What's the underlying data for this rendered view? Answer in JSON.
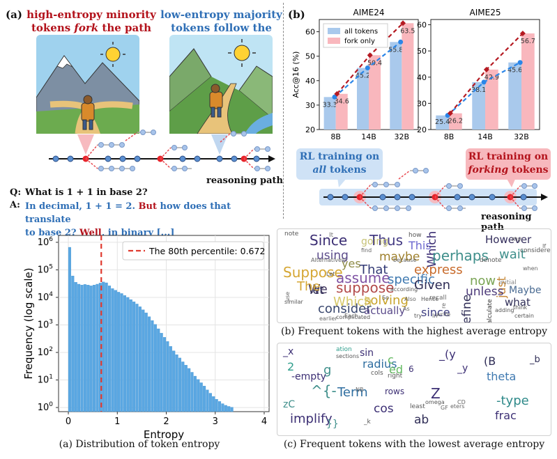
{
  "panel_a_top": {
    "label": "(a)",
    "left_caption_l1": "high-entropy minority",
    "left_caption_l2_pre": "tokens ",
    "left_caption_l2_em": "fork",
    "left_caption_l2_post": " the path",
    "right_caption_l1": "low-entropy majority",
    "right_caption_l2": "tokens follow the path",
    "path_label": "reasoning path",
    "q_label": "Q:",
    "q_text": "What is 1 + 1 in base 2?",
    "a_label": "A:",
    "a_seg1": "In decimal, 1 + 1 = 2. ",
    "a_seg2": "But",
    "a_seg3": " how does that translate",
    "a_seg4": "to base 2? ",
    "a_seg5": "Well",
    "a_seg6": ", in binary [...]"
  },
  "panel_b_top": {
    "label": "(b)",
    "rl_all_l1": "RL training on",
    "rl_all_em": "all",
    "rl_all_post": " tokens",
    "rl_fork_l1": "RL training on",
    "rl_fork_em": "forking",
    "rl_fork_post": " tokens",
    "path_label": "reasoning path"
  },
  "chart_data": [
    {
      "type": "bar",
      "title": "AIME24",
      "ylabel": "Acc@16 (%)",
      "categories": [
        "8B",
        "14B",
        "32B"
      ],
      "ylim": [
        20,
        65
      ],
      "yticks": [
        "20",
        "30",
        "40",
        "50",
        "60"
      ],
      "legend": [
        "all tokens",
        "fork only"
      ],
      "series": [
        {
          "name": "all tokens",
          "values": [
            33.3,
            45.2,
            55.8
          ],
          "labels": [
            "33.3",
            "45.2",
            "55.8"
          ]
        },
        {
          "name": "fork only",
          "values": [
            34.6,
            50.4,
            63.5
          ],
          "labels": [
            "34.6",
            "50.4",
            "63.5"
          ]
        }
      ]
    },
    {
      "type": "bar",
      "title": "AIME25",
      "ylabel": "",
      "categories": [
        "8B",
        "14B",
        "32B"
      ],
      "ylim": [
        20,
        62
      ],
      "yticks": [
        "20",
        "30",
        "40",
        "50",
        "60"
      ],
      "series": [
        {
          "name": "all tokens",
          "values": [
            25.4,
            38.1,
            45.6
          ],
          "labels": [
            "25.4",
            "38.1",
            "45.6"
          ]
        },
        {
          "name": "fork only",
          "values": [
            26.2,
            42.9,
            56.7
          ],
          "labels": [
            "26.2",
            "42.9",
            "56.7"
          ]
        }
      ]
    },
    {
      "type": "bar",
      "title": "",
      "xlabel": "Entropy",
      "ylabel": "Frequency (log scale)",
      "xlim": [
        -0.2,
        4.1
      ],
      "xticks": [
        "0",
        "1",
        "2",
        "3",
        "4"
      ],
      "yticks": [
        "10^0",
        "10^1",
        "10^2",
        "10^3",
        "10^4",
        "10^5",
        "10^6"
      ],
      "ylim_log10": [
        -0.15,
        6.25
      ],
      "bin_width": 0.0625,
      "bin_start": 0,
      "log10_counts": [
        5.82,
        4.78,
        4.55,
        4.48,
        4.45,
        4.47,
        4.45,
        4.42,
        4.45,
        4.48,
        4.52,
        4.56,
        4.53,
        4.42,
        4.32,
        4.26,
        4.19,
        4.14,
        4.07,
        4.0,
        3.92,
        3.84,
        3.76,
        3.66,
        3.55,
        3.44,
        3.3,
        3.16,
        3.02,
        2.86,
        2.7,
        2.55,
        2.4,
        2.22,
        2.06,
        1.92,
        1.8,
        1.66,
        1.54,
        1.42,
        1.28,
        1.14,
        1.02,
        0.9,
        0.78,
        0.64,
        0.52,
        0.4,
        0.3,
        0.22,
        0.14,
        0.08,
        0.04,
        0.01
      ],
      "annotation": "The 80th percentile: 0.672",
      "percentile_x": 0.672,
      "caption": "(a) Distribution of token entropy"
    }
  ],
  "cloud_high": {
    "caption": "(b) Frequent tokens with the highest average entropy",
    "words": [
      "Since",
      "Thus",
      "This",
      "Which",
      "However",
      "wait",
      "perhaps",
      "maybe",
      "going",
      "using",
      "yes",
      "That",
      "Suppose",
      "express",
      "just",
      "assume",
      "specific",
      "We",
      "suppose",
      "Given",
      "unless",
      "now",
      "consider",
      "solving",
      "Which",
      "define",
      "actually",
      "since",
      "what",
      "Maybe",
      "let",
      "The",
      "how",
      "It",
      "note",
      "denote",
      "calculate",
      "recall",
      "complicated",
      "earlier",
      "Alternatively",
      "because",
      "considered",
      "think",
      "initial",
      "certain",
      "according",
      "re",
      "If",
      "when",
      "my",
      "write",
      "Hence",
      "adding",
      "Also",
      "try",
      "So",
      "Each",
      "use",
      "As",
      "similar",
      "find",
      "In",
      "Let"
    ]
  },
  "cloud_low": {
    "caption": "(c) Frequent tokens with the lowest average entropy",
    "words": [
      "_x",
      "sin",
      "ation",
      "sections",
      "radius",
      "_(y",
      "_b",
      "g",
      "ed",
      "(B",
      "theta",
      "-empty",
      "^{-",
      "Term",
      "rows",
      "Z",
      "-type",
      "frac",
      "cos",
      "ab",
      "implify",
      "least",
      "omega",
      "cols",
      "right",
      "NB",
      "_k",
      "eters",
      "GF",
      "CD",
      "}}",
      "zC",
      "_y",
      "c",
      "6",
      "2"
    ]
  }
}
